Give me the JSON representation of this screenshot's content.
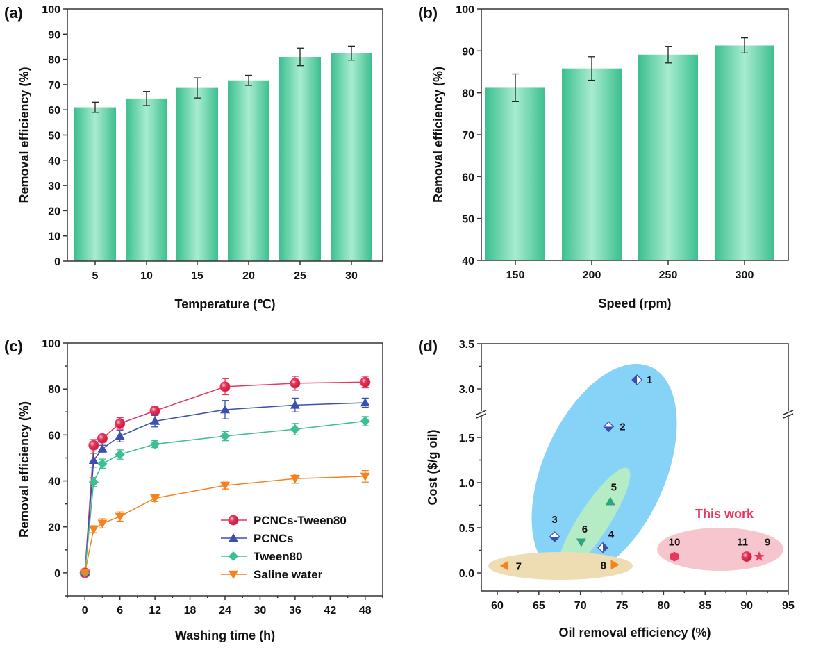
{
  "colors": {
    "bar": "#3cbf8f",
    "bar_light": "#a8ecd0",
    "pink": "#e8365d",
    "blue": "#3a4fb0",
    "green": "#3cbf91",
    "orange": "#f5821f",
    "ellipse_blue": "#87d3f8",
    "ellipse_green": "#b5ecc5",
    "ellipse_tan": "#eedcb2",
    "ellipse_pink": "#f7c5ce"
  },
  "chart_data": [
    {
      "panel": "(a)",
      "type": "bar",
      "xlabel": "Temperature (℃)",
      "ylabel": "Removal efficiency (%)",
      "categories": [
        "5",
        "10",
        "15",
        "20",
        "25",
        "30"
      ],
      "values": [
        61,
        64.5,
        68.7,
        71.7,
        81,
        82.5
      ],
      "errors": [
        2,
        2.8,
        4,
        2,
        3.5,
        2.8
      ],
      "ylim": [
        0,
        100
      ],
      "yticks": [
        "0",
        "10",
        "20",
        "30",
        "40",
        "50",
        "60",
        "70",
        "80",
        "90",
        "100"
      ]
    },
    {
      "panel": "(b)",
      "type": "bar",
      "xlabel": "Speed (rpm)",
      "ylabel": "Removal efficiency (%)",
      "categories": [
        "150",
        "200",
        "250",
        "300"
      ],
      "values": [
        81.2,
        85.8,
        89.1,
        91.3
      ],
      "errors": [
        3.3,
        2.8,
        2,
        1.8
      ],
      "ylim": [
        40,
        100
      ],
      "yticks": [
        "40",
        "50",
        "60",
        "70",
        "80",
        "90",
        "100"
      ]
    },
    {
      "panel": "(c)",
      "type": "line",
      "xlabel": "Washing time (h)",
      "ylabel": "Removal efficiency (%)",
      "x": [
        0,
        1.5,
        3,
        6,
        12,
        24,
        36,
        48
      ],
      "xlim": [
        -3,
        51
      ],
      "ylim": [
        -10,
        100
      ],
      "xticks": [
        "0",
        "6",
        "12",
        "18",
        "24",
        "30",
        "36",
        "42",
        "48"
      ],
      "yticks": [
        "0",
        "20",
        "40",
        "60",
        "80",
        "100"
      ],
      "legend_position": "bottom-right",
      "series": [
        {
          "name": "PCNCs-Tween80",
          "marker": "circle",
          "values": [
            0,
            55.5,
            58.5,
            65,
            70.5,
            81,
            82.5,
            83
          ],
          "errors": [
            0,
            2.5,
            1.5,
            2.5,
            2,
            3.5,
            3,
            2.5
          ]
        },
        {
          "name": "PCNCs",
          "marker": "triangle-up",
          "values": [
            0,
            49,
            54,
            59.5,
            66,
            71,
            73,
            74
          ],
          "errors": [
            0,
            3,
            1.5,
            2.5,
            2.5,
            4,
            3,
            2
          ]
        },
        {
          "name": "Tween80",
          "marker": "diamond",
          "values": [
            0,
            39.5,
            47.5,
            51.5,
            56,
            59.5,
            62.5,
            66
          ],
          "errors": [
            0,
            2,
            2,
            2,
            1.5,
            2,
            2.5,
            2
          ]
        },
        {
          "name": "Saline water",
          "marker": "triangle-down",
          "values": [
            0,
            19,
            21.5,
            24.5,
            32.5,
            38,
            41,
            42
          ],
          "errors": [
            0,
            1.5,
            2,
            2,
            1.5,
            1.5,
            2,
            2.5
          ]
        }
      ]
    },
    {
      "panel": "(d)",
      "type": "scatter",
      "xlabel": "Oil removal efficiency (%)",
      "ylabel": "Cost ($/g oil)",
      "xlim": [
        58,
        95
      ],
      "xticks": [
        "60",
        "65",
        "70",
        "75",
        "80",
        "85",
        "90",
        "95"
      ],
      "ylim_lower": [
        -0.2,
        1.5
      ],
      "ylim_upper": [
        3.0,
        3.5
      ],
      "y_axis_break": true,
      "yticks": [
        "0.0",
        "0.5",
        "1.0",
        "1.5",
        "3.0",
        "3.5"
      ],
      "annotation": "This work",
      "points": [
        {
          "label": "1",
          "x": 76.8,
          "y": 3.1,
          "marker": "diamond-half-left",
          "color": "#3a4fb0"
        },
        {
          "label": "2",
          "x": 73.4,
          "y": 1.62,
          "marker": "diamond-half-bottom",
          "color": "#3a4fb0"
        },
        {
          "label": "3",
          "x": 66.9,
          "y": 0.4,
          "marker": "diamond-half-bottom",
          "color": "#3a4fb0"
        },
        {
          "label": "4",
          "x": 72.7,
          "y": 0.28,
          "marker": "diamond-half-right",
          "color": "#3a4fb0"
        },
        {
          "label": "5",
          "x": 73.6,
          "y": 0.79,
          "marker": "triangle-up",
          "color": "#2fa57e"
        },
        {
          "label": "6",
          "x": 70.1,
          "y": 0.34,
          "marker": "triangle-down",
          "color": "#2fa57e"
        },
        {
          "label": "7",
          "x": 60.9,
          "y": 0.08,
          "marker": "triangle-left",
          "color": "#f5821f"
        },
        {
          "label": "8",
          "x": 74.1,
          "y": 0.09,
          "marker": "triangle-right",
          "color": "#f5821f"
        },
        {
          "label": "9",
          "x": 91.5,
          "y": 0.18,
          "marker": "star",
          "color": "#e8365d"
        },
        {
          "label": "10",
          "x": 81.3,
          "y": 0.18,
          "marker": "hexagon",
          "color": "#e8365d"
        },
        {
          "label": "11",
          "x": 90.0,
          "y": 0.18,
          "marker": "circle",
          "color": "#e8365d"
        }
      ]
    }
  ]
}
